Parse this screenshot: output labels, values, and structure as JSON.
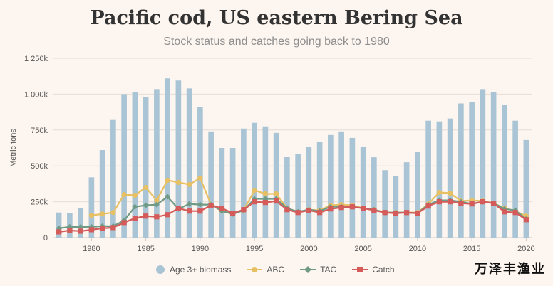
{
  "title": "Pacific cod, US eastern Bering Sea",
  "subtitle": "Stock status and catches going back to 1980",
  "watermark": "万泽丰渔业",
  "chart_data": {
    "type": "bar",
    "title": "Pacific cod, US eastern Bering Sea",
    "subtitle": "Stock status and catches going back to 1980",
    "ylabel": "Metric tons",
    "xlabel": "",
    "ylim": [
      0,
      1250000
    ],
    "y_ticks": [
      0,
      250000,
      500000,
      750000,
      1000000,
      1250000
    ],
    "y_tick_labels": [
      "0",
      "250k",
      "500k",
      "750k",
      "1 000k",
      "1 250k"
    ],
    "x_ticks": [
      1980,
      1985,
      1990,
      1995,
      2000,
      2005,
      2010,
      2015,
      2020
    ],
    "x_tick_labels": [
      "1980",
      "1985",
      "1990",
      "1995",
      "2000",
      "2005",
      "2010",
      "2015",
      "2020"
    ],
    "xlim": [
      1976.5,
      2020.5
    ],
    "grid": true,
    "legend_position": "bottom",
    "colors": {
      "biomass": "#a9c4d5",
      "abc": "#e8c064",
      "tac": "#6f9a86",
      "catch": "#d55a5a",
      "grid": "#e4dcd6",
      "axis": "#cfc7c1",
      "tick_text": "#555555"
    },
    "series": [
      {
        "name": "Age 3+ biomass",
        "type": "bar",
        "color": "#a9c4d5",
        "x": [
          1977,
          1978,
          1979,
          1980,
          1981,
          1982,
          1983,
          1984,
          1985,
          1986,
          1987,
          1988,
          1989,
          1990,
          1991,
          1992,
          1993,
          1994,
          1995,
          1996,
          1997,
          1998,
          1999,
          2000,
          2001,
          2002,
          2003,
          2004,
          2005,
          2006,
          2007,
          2008,
          2009,
          2010,
          2011,
          2012,
          2013,
          2014,
          2015,
          2016,
          2017,
          2018,
          2019,
          2020
        ],
        "values": [
          175000,
          170000,
          205000,
          420000,
          610000,
          825000,
          1000000,
          1015000,
          980000,
          1035000,
          1110000,
          1095000,
          1040000,
          910000,
          740000,
          625000,
          625000,
          760000,
          800000,
          775000,
          730000,
          565000,
          585000,
          630000,
          665000,
          715000,
          740000,
          695000,
          635000,
          560000,
          470000,
          430000,
          525000,
          595000,
          815000,
          810000,
          830000,
          935000,
          945000,
          1035000,
          1015000,
          925000,
          815000,
          680000
        ]
      },
      {
        "name": "ABC",
        "type": "line",
        "color": "#e8c064",
        "marker": "circle",
        "x": [
          1980,
          1981,
          1982,
          1983,
          1984,
          1985,
          1986,
          1987,
          1988,
          1989,
          1990,
          1991,
          1992,
          1993,
          1994,
          1995,
          1996,
          1997,
          1998,
          1999,
          2000,
          2001,
          2002,
          2003,
          2004,
          2005,
          2006,
          2007,
          2008,
          2009,
          2010,
          2011,
          2012,
          2013,
          2014,
          2015,
          2016,
          2017,
          2018,
          2019,
          2020
        ],
        "values": [
          155000,
          165000,
          175000,
          300000,
          295000,
          350000,
          260000,
          400000,
          385000,
          370000,
          415000,
          230000,
          185000,
          165000,
          190000,
          330000,
          305000,
          305000,
          205000,
          175000,
          195000,
          190000,
          225000,
          230000,
          225000,
          205000,
          195000,
          175000,
          175000,
          175000,
          175000,
          235000,
          315000,
          310000,
          255000,
          260000,
          255000,
          240000,
          205000,
          185000,
          150000
        ]
      },
      {
        "name": "TAC",
        "type": "line",
        "color": "#6f9a86",
        "marker": "diamond",
        "x": [
          1977,
          1978,
          1979,
          1980,
          1981,
          1982,
          1983,
          1984,
          1985,
          1986,
          1987,
          1988,
          1989,
          1990,
          1991,
          1992,
          1993,
          1994,
          1995,
          1996,
          1997,
          1998,
          1999,
          2000,
          2001,
          2002,
          2003,
          2004,
          2005,
          2006,
          2007,
          2008,
          2009,
          2010,
          2011,
          2012,
          2013,
          2014,
          2015,
          2016,
          2017,
          2018,
          2019,
          2020
        ],
        "values": [
          65000,
          75000,
          75000,
          75000,
          80000,
          80000,
          120000,
          215000,
          225000,
          230000,
          285000,
          200000,
          235000,
          230000,
          230000,
          185000,
          165000,
          190000,
          270000,
          270000,
          270000,
          205000,
          180000,
          195000,
          185000,
          215000,
          215000,
          215000,
          205000,
          195000,
          175000,
          175000,
          175000,
          170000,
          230000,
          260000,
          260000,
          250000,
          235000,
          250000,
          240000,
          200000,
          190000,
          130000
        ]
      },
      {
        "name": "Catch",
        "type": "line",
        "color": "#d55a5a",
        "marker": "square",
        "x": [
          1977,
          1978,
          1979,
          1980,
          1981,
          1982,
          1983,
          1984,
          1985,
          1986,
          1987,
          1988,
          1989,
          1990,
          1991,
          1992,
          1993,
          1994,
          1995,
          1996,
          1997,
          1998,
          1999,
          2000,
          2001,
          2002,
          2003,
          2004,
          2005,
          2006,
          2007,
          2008,
          2009,
          2010,
          2011,
          2012,
          2013,
          2014,
          2015,
          2016,
          2017,
          2018,
          2019,
          2020
        ],
        "values": [
          40000,
          50000,
          45000,
          55000,
          65000,
          70000,
          105000,
          135000,
          150000,
          145000,
          160000,
          205000,
          185000,
          185000,
          225000,
          205000,
          170000,
          195000,
          250000,
          245000,
          255000,
          195000,
          175000,
          190000,
          175000,
          200000,
          210000,
          215000,
          205000,
          190000,
          175000,
          170000,
          175000,
          170000,
          220000,
          250000,
          250000,
          240000,
          235000,
          250000,
          240000,
          180000,
          175000,
          125000
        ]
      }
    ]
  }
}
